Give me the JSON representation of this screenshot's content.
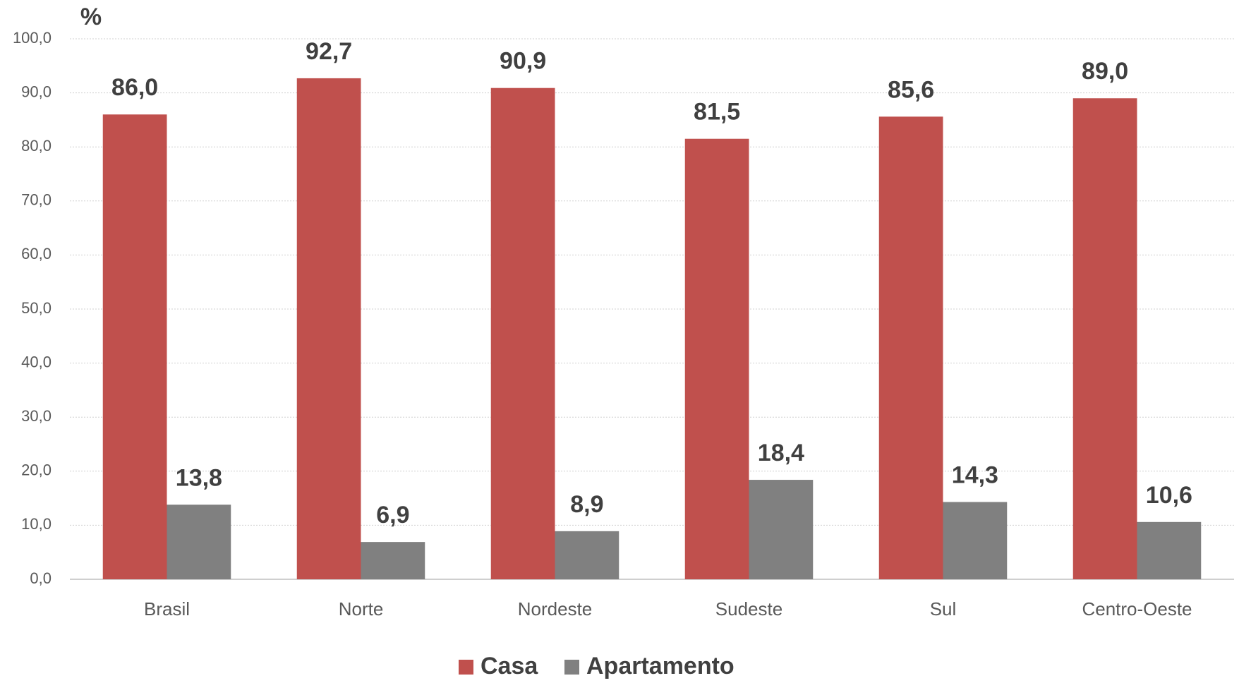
{
  "chart_data": {
    "type": "bar",
    "y_axis_label": "%",
    "categories": [
      "Brasil",
      "Norte",
      "Nordeste",
      "Sudeste",
      "Sul",
      "Centro-Oeste"
    ],
    "series": [
      {
        "name": "Casa",
        "color": "#c0504d",
        "values": [
          86.0,
          92.7,
          90.9,
          81.5,
          85.6,
          89.0
        ],
        "value_labels": [
          "86,0",
          "92,7",
          "90,9",
          "81,5",
          "85,6",
          "89,0"
        ]
      },
      {
        "name": "Apartamento",
        "color": "#808080",
        "values": [
          13.8,
          6.9,
          8.9,
          18.4,
          14.3,
          10.6
        ],
        "value_labels": [
          "13,8",
          "6,9",
          "8,9",
          "18,4",
          "14,3",
          "10,6"
        ]
      }
    ],
    "ylim": [
      0,
      100
    ],
    "yticks": [
      {
        "value": 0,
        "label": "0,0"
      },
      {
        "value": 10,
        "label": "10,0"
      },
      {
        "value": 20,
        "label": "20,0"
      },
      {
        "value": 30,
        "label": "30,0"
      },
      {
        "value": 40,
        "label": "40,0"
      },
      {
        "value": 50,
        "label": "50,0"
      },
      {
        "value": 60,
        "label": "60,0"
      },
      {
        "value": 70,
        "label": "70,0"
      },
      {
        "value": 80,
        "label": "80,0"
      },
      {
        "value": 90,
        "label": "90,0"
      },
      {
        "value": 100,
        "label": "100,0"
      }
    ],
    "grid": true,
    "legend": "bottom"
  }
}
